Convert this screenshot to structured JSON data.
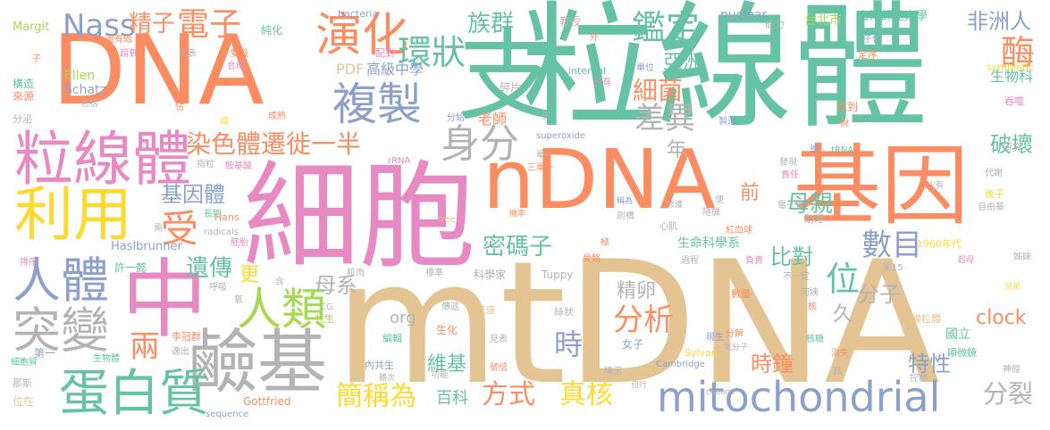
{
  "palette": {
    "teal": "#66c2a5",
    "orange": "#fc8d62",
    "blue": "#8da0cb",
    "pink": "#e78ac3",
    "green": "#a6d854",
    "yellow": "#ffd92f",
    "tan": "#e5c494",
    "gray": "#b3b3b3"
  },
  "words": [
    {
      "text": "粒線體"
    },
    {
      "text": "細胞"
    },
    {
      "text": "mtDNA"
    },
    {
      "text": "DNA"
    },
    {
      "text": "nDNA"
    },
    {
      "text": "基因"
    },
    {
      "text": "支"
    },
    {
      "text": "中"
    },
    {
      "text": "鹼基"
    },
    {
      "text": "粒線體"
    },
    {
      "text": "利用"
    },
    {
      "text": "蛋白質"
    },
    {
      "text": "mitochondrial"
    },
    {
      "text": "複製"
    },
    {
      "text": "演化"
    },
    {
      "text": "人體"
    },
    {
      "text": "突變"
    },
    {
      "text": "人類"
    },
    {
      "text": "身分"
    },
    {
      "text": "染色體遷徙一半"
    },
    {
      "text": "電子"
    },
    {
      "text": "Nass"
    },
    {
      "text": "精子"
    },
    {
      "text": "環狀"
    },
    {
      "text": "族群"
    },
    {
      "text": "鑑定"
    },
    {
      "text": "差異"
    },
    {
      "text": "細菌"
    },
    {
      "text": "亞洲"
    },
    {
      "text": "非洲人"
    },
    {
      "text": "酶"
    },
    {
      "text": "破壞"
    },
    {
      "text": "位"
    },
    {
      "text": "數目"
    },
    {
      "text": "分析"
    },
    {
      "text": "時"
    },
    {
      "text": "密碼子"
    },
    {
      "text": "母親"
    },
    {
      "text": "基因體"
    },
    {
      "text": "受"
    },
    {
      "text": "遺傳"
    },
    {
      "text": "母系"
    },
    {
      "text": "兩"
    },
    {
      "text": "簡稱為"
    },
    {
      "text": "方式"
    },
    {
      "text": "真核"
    },
    {
      "text": "分裂"
    },
    {
      "text": "clock"
    },
    {
      "text": "時鐘"
    },
    {
      "text": "特性"
    },
    {
      "text": "比對"
    },
    {
      "text": "分子"
    },
    {
      "text": "精卵"
    },
    {
      "text": "維基"
    },
    {
      "text": "百科"
    },
    {
      "text": "org"
    },
    {
      "text": "更"
    },
    {
      "text": "年"
    },
    {
      "text": "前"
    },
    {
      "text": "久"
    },
    {
      "text": "PDF"
    },
    {
      "text": "高級中學"
    },
    {
      "text": "老師"
    },
    {
      "text": "Ellen"
    },
    {
      "text": "Schatz"
    },
    {
      "text": "生物科"
    },
    {
      "text": "台北市"
    },
    {
      "text": "台灣師範大學"
    },
    {
      "text": "生命科學系"
    },
    {
      "text": "Margit"
    },
    {
      "text": "bacteria"
    },
    {
      "text": "nuclear"
    },
    {
      "text": "能力"
    },
    {
      "text": "教授"
    },
    {
      "text": "純化"
    },
    {
      "text": "構造"
    },
    {
      "text": "來源"
    },
    {
      "text": "包括"
    },
    {
      "text": "超氧"
    },
    {
      "text": "還有給"
    },
    {
      "text": "代表"
    },
    {
      "text": "雙股"
    },
    {
      "text": "合成"
    },
    {
      "text": "配對"
    },
    {
      "text": "internal"
    },
    {
      "text": "單位"
    },
    {
      "text": "共有"
    },
    {
      "text": "碎片"
    },
    {
      "text": "symbiotic"
    },
    {
      "text": "定序"
    },
    {
      "text": "吞噬"
    },
    {
      "text": "子代"
    },
    {
      "text": "分泌"
    },
    {
      "text": "成熟"
    },
    {
      "text": "分給"
    },
    {
      "text": "找到"
    },
    {
      "text": "製造"
    },
    {
      "text": "說"
    },
    {
      "text": "研究"
    },
    {
      "text": "rRNA"
    },
    {
      "text": "superoxide"
    },
    {
      "text": "tRNA"
    },
    {
      "text": "發現"
    },
    {
      "text": "學"
    },
    {
      "text": "責任"
    },
    {
      "text": "少有"
    },
    {
      "text": "代謝"
    },
    {
      "text": "後子"
    },
    {
      "text": "自由基"
    },
    {
      "text": "電子會"
    },
    {
      "text": "助理"
    },
    {
      "text": "紅血球"
    },
    {
      "text": "心肌"
    },
    {
      "text": "隨機"
    },
    {
      "text": "便"
    },
    {
      "text": "極"
    },
    {
      "text": "機率"
    },
    {
      "text": "劍橋"
    },
    {
      "text": "稱為"
    },
    {
      "text": "修護"
    },
    {
      "text": "長期"
    },
    {
      "text": "指粒"
    },
    {
      "text": "胺基酸"
    },
    {
      "text": "Hans"
    },
    {
      "text": "Haslbrunner"
    },
    {
      "text": "許一懿"
    },
    {
      "text": "radicals"
    },
    {
      "text": "胚胎"
    },
    {
      "text": "free"
    },
    {
      "text": "需"
    },
    {
      "text": "排序"
    },
    {
      "text": "呼吸"
    },
    {
      "text": "氧"
    },
    {
      "text": "含"
    },
    {
      "text": "肌肉"
    },
    {
      "text": "標準"
    },
    {
      "text": "科學家"
    },
    {
      "text": "Tuppy"
    },
    {
      "text": "骨骼"
    },
    {
      "text": "負責"
    },
    {
      "text": "過程"
    },
    {
      "text": "第15"
    },
    {
      "text": "1960年代"
    },
    {
      "text": "超母"
    },
    {
      "text": "姊妹"
    },
    {
      "text": "兄弟"
    },
    {
      "text": "不一定"
    },
    {
      "text": "阿姨"
    },
    {
      "text": "核"
    },
    {
      "text": "數量"
    },
    {
      "text": "線粒體"
    },
    {
      "text": "絲狀"
    },
    {
      "text": "旺盛"
    },
    {
      "text": "傳遞"
    },
    {
      "text": "編輯"
    },
    {
      "text": "生化"
    },
    {
      "text": "共生"
    },
    {
      "text": "內共生"
    },
    {
      "text": "李冠群"
    },
    {
      "text": "第一"
    },
    {
      "text": "逸出"
    },
    {
      "text": "生物體"
    },
    {
      "text": "細胞質"
    },
    {
      "text": "見表"
    },
    {
      "text": "女子"
    },
    {
      "text": "號倍"
    },
    {
      "text": "體次"
    },
    {
      "text": "功能"
    },
    {
      "text": "情況"
    },
    {
      "text": "自行"
    },
    {
      "text": "Cambridge"
    },
    {
      "text": "Sylvan"
    },
    {
      "text": "現生"
    },
    {
      "text": "氧分子"
    },
    {
      "text": "分解"
    },
    {
      "text": "核糖"
    },
    {
      "text": "具"
    },
    {
      "text": "消失"
    },
    {
      "text": "控制"
    },
    {
      "text": "codons"
    },
    {
      "text": "國立"
    },
    {
      "text": "顯微鏡"
    },
    {
      "text": "神經"
    },
    {
      "text": "Gottfried"
    },
    {
      "text": "sequence"
    },
    {
      "text": "CG"
    },
    {
      "text": "那斯"
    },
    {
      "text": "位在"
    },
    {
      "text": "佔"
    },
    {
      "text": "成"
    },
    {
      "text": "子"
    },
    {
      "text": "生"
    },
    {
      "text": "外"
    },
    {
      "text": "三單一"
    },
    {
      "text": "單一"
    }
  ]
}
